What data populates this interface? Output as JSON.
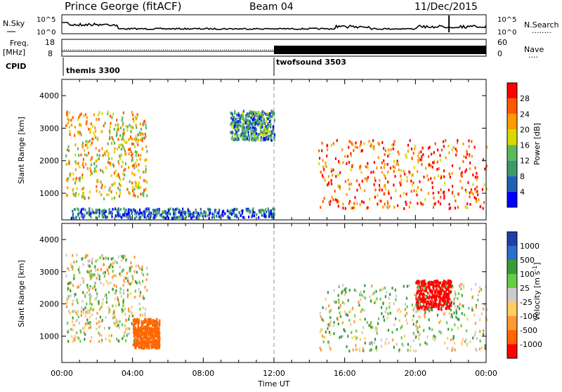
{
  "header": {
    "station": "Prince George (fitACF)",
    "beam": "Beam 04",
    "date": "11/Dec/2015"
  },
  "colors": {
    "frame": "#000000",
    "gap": "#cccccc",
    "power_scale": [
      "#0000ff",
      "#1f5fb4",
      "#3c9a6a",
      "#5cb85c",
      "#d9d900",
      "#ff9a00",
      "#ff5a00",
      "#ff0000"
    ],
    "velocity_scale": [
      "#1f3fa8",
      "#2a6fc9",
      "#3a9a3a",
      "#66cc44",
      "#cccccc",
      "#ffcc66",
      "#ff9933",
      "#ff6600",
      "#ff0000"
    ]
  },
  "labels": {
    "nsky": "N.Sky",
    "nsearch": "N.Search",
    "nsearch_dots": "........",
    "freq": "Freq.",
    "freq_unit": "[MHz]",
    "nave": "Nave",
    "nave_dots": "....",
    "cpid": "CPID",
    "cpid_a": "themis 3300",
    "cpid_b": "twofsound 3503",
    "noise_left_top": "10^5",
    "noise_left_bottom": "10^0",
    "noise_right_top": "10^5",
    "noise_right_bottom": "10^0",
    "freq_top": "18",
    "freq_bottom": "8",
    "nave_top": "60",
    "nave_bottom": "0",
    "slant_range": "Slant Range [km]",
    "power_title": "Power [dB]",
    "velocity_title": "Velocity [m s",
    "velocity_exp": "-1",
    "velocity_close": "]",
    "time_axis": "Time UT"
  },
  "chart_data": [
    {
      "type": "heatmap",
      "title": "Power [dB]",
      "xlabel": "Time UT",
      "ylabel": "Slant Range [km]",
      "x_ticks": [
        "00:00",
        "04:00",
        "08:00",
        "12:00",
        "16:00",
        "20:00",
        "00:00"
      ],
      "xlim_hours": [
        0,
        24
      ],
      "ylim": [
        180,
        4500
      ],
      "y_ticks": [
        1000,
        2000,
        3000,
        4000
      ],
      "colorbar": {
        "min": 0,
        "max": 32,
        "ticks": [
          4,
          8,
          12,
          16,
          20,
          24,
          28
        ]
      },
      "echo_regions": [
        {
          "t": [
            0.2,
            4.8
          ],
          "r": [
            800,
            3500
          ],
          "level": 20
        },
        {
          "t": [
            9.5,
            12.0
          ],
          "r": [
            2600,
            3500
          ],
          "level": 10
        },
        {
          "t": [
            14.5,
            24.0
          ],
          "r": [
            500,
            2600
          ],
          "level": 26
        },
        {
          "t": [
            0.5,
            12.0
          ],
          "r": [
            200,
            500
          ],
          "level": 6
        }
      ]
    },
    {
      "type": "heatmap",
      "title": "Velocity [m s-1]",
      "xlabel": "Time UT",
      "ylabel": "Slant Range [km]",
      "x_ticks": [
        "00:00",
        "04:00",
        "08:00",
        "12:00",
        "16:00",
        "20:00",
        "00:00"
      ],
      "xlim_hours": [
        0,
        24
      ],
      "ylim": [
        180,
        4500
      ],
      "y_ticks": [
        1000,
        2000,
        3000,
        4000
      ],
      "colorbar": {
        "ticks": [
          "1000",
          "500",
          "100",
          "25",
          "-25",
          "-100",
          "-500",
          "-1000"
        ]
      },
      "echo_regions": [
        {
          "t": [
            0.2,
            4.8
          ],
          "r": [
            800,
            3500
          ],
          "level": 0
        },
        {
          "t": [
            4.0,
            5.5
          ],
          "r": [
            600,
            1500
          ],
          "level": -400
        },
        {
          "t": [
            20.0,
            22.0
          ],
          "r": [
            1800,
            2700
          ],
          "level": -800
        },
        {
          "t": [
            14.5,
            24.0
          ],
          "r": [
            500,
            2600
          ],
          "level": 10
        }
      ]
    }
  ]
}
